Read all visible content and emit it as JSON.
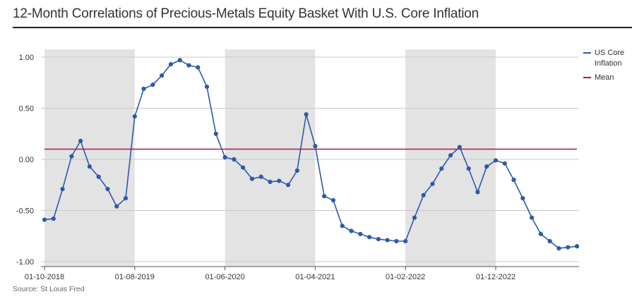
{
  "title": "12-Month Correlations of Precious-Metals Equity Basket With U.S. Core Inflation",
  "source": "Source: St Louis Fred",
  "chart_data": {
    "type": "line",
    "title": "12-Month Correlations of Precious-Metals Equity Basket With U.S. Core Inflation",
    "xlabel": "",
    "ylabel": "",
    "ylim": [
      -1.0,
      1.0
    ],
    "yticks": [
      {
        "value": 1.0,
        "label": "1.00"
      },
      {
        "value": 0.5,
        "label": "0.50"
      },
      {
        "value": 0.0,
        "label": "0.00"
      },
      {
        "value": -0.5,
        "label": "-0.50"
      },
      {
        "value": -1.0,
        "label": "-1.00"
      }
    ],
    "xticks": [
      {
        "index": 0,
        "label": "01-10-2018"
      },
      {
        "index": 10,
        "label": "01-08-2019"
      },
      {
        "index": 20,
        "label": "01-06-2020"
      },
      {
        "index": 30,
        "label": "01-04-2021"
      },
      {
        "index": 40,
        "label": "01-02-2022"
      },
      {
        "index": 50,
        "label": "01-12-2022"
      }
    ],
    "shaded_bands": [
      {
        "from": 0,
        "to": 10
      },
      {
        "from": 20,
        "to": 30
      },
      {
        "from": 40,
        "to": 50
      }
    ],
    "grid": true,
    "legend_position": "right",
    "series": [
      {
        "name": "US Core Inflation",
        "color": "#2d5aa8",
        "values": [
          -0.59,
          -0.58,
          -0.29,
          0.03,
          0.18,
          -0.07,
          -0.17,
          -0.29,
          -0.46,
          -0.38,
          0.42,
          0.69,
          0.73,
          0.82,
          0.93,
          0.97,
          0.92,
          0.9,
          0.71,
          0.25,
          0.02,
          0.0,
          -0.08,
          -0.19,
          -0.17,
          -0.22,
          -0.21,
          -0.25,
          -0.11,
          0.44,
          0.13,
          -0.36,
          -0.4,
          -0.65,
          -0.7,
          -0.73,
          -0.76,
          -0.78,
          -0.79,
          -0.8,
          -0.8,
          -0.57,
          -0.35,
          -0.24,
          -0.09,
          0.04,
          0.12,
          -0.09,
          -0.32,
          -0.07,
          -0.01,
          -0.04,
          -0.2,
          -0.38,
          -0.57,
          -0.73,
          -0.8,
          -0.87,
          -0.86,
          -0.85
        ]
      },
      {
        "name": "Mean",
        "color": "#b3143c",
        "values": [
          0.1,
          0.1
        ]
      }
    ]
  }
}
